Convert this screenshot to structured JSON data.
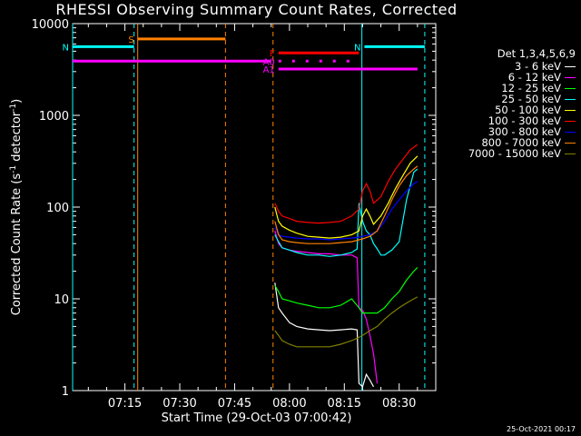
{
  "title": "RHESSI Observing Summary Count Rates, Corrected",
  "timestamp": "25-Oct-2021 00:17",
  "chart_data": {
    "type": "line",
    "xlabel": "Start Time (29-Oct-03 07:00:42)",
    "ylabel_main": "Corrected Count Rate (s",
    "ylabel_sup": "-1",
    "ylabel_tail": " detector",
    "ylabel_end": ")",
    "x_start_min": 0.7,
    "xlim": [
      0.7,
      100
    ],
    "ylim": [
      1,
      10000
    ],
    "yscale": "log",
    "xticks": [
      {
        "t": 15,
        "label": "07:15"
      },
      {
        "t": 30,
        "label": "07:30"
      },
      {
        "t": 45,
        "label": "07:45"
      },
      {
        "t": 60,
        "label": "08:00"
      },
      {
        "t": 75,
        "label": "08:15"
      },
      {
        "t": 90,
        "label": "08:30"
      }
    ],
    "yticks": [
      {
        "v": 1,
        "label": "1"
      },
      {
        "v": 10,
        "label": "10"
      },
      {
        "v": 100,
        "label": "100"
      },
      {
        "v": 1000,
        "label": "1000"
      },
      {
        "v": 10000,
        "label": "10000"
      }
    ],
    "legend_title": "Det 1,3,4,5,6,9",
    "series": [
      {
        "name": "3 - 6 keV",
        "color": "#000000",
        "t": [
          56,
          57,
          58,
          60,
          62,
          65,
          68,
          71,
          74,
          77,
          78.5,
          79,
          80,
          81,
          82,
          83,
          85,
          86,
          88,
          90,
          92,
          94,
          95
        ],
        "values": [
          15,
          8,
          7,
          5.5,
          5,
          4.7,
          4.6,
          4.5,
          4.6,
          4.7,
          4.6,
          1.2,
          1.1,
          1.5,
          1.3,
          1.1,
          null,
          null,
          null,
          null,
          null,
          null,
          null
        ]
      },
      {
        "name": "6 - 12 keV",
        "color": "#ff00ff",
        "t": [
          56,
          57,
          58,
          60,
          62,
          65,
          68,
          71,
          74,
          77,
          78.5,
          79,
          80,
          81,
          82,
          83,
          84,
          85,
          86,
          88,
          90,
          92,
          94,
          95
        ],
        "values": [
          55,
          40,
          36,
          34,
          33,
          32,
          31,
          31,
          30,
          30,
          28,
          8,
          7.5,
          6,
          4,
          2.5,
          1.2,
          null,
          null,
          null,
          null,
          null,
          null,
          null
        ]
      },
      {
        "name": "12 - 25 keV",
        "color": "#00ff00",
        "t": [
          56,
          57,
          58,
          60,
          62,
          65,
          68,
          71,
          74,
          77,
          79,
          80,
          82,
          84,
          86,
          88,
          90,
          92,
          94,
          95
        ],
        "values": [
          14,
          12,
          10,
          9.5,
          9,
          8.5,
          8,
          8,
          8.5,
          10,
          8,
          7,
          7,
          7,
          8,
          10,
          12,
          16,
          20,
          22
        ]
      },
      {
        "name": "25 - 50 keV",
        "color": "#00ffff",
        "t": [
          56,
          57,
          58,
          60,
          62,
          65,
          68,
          71,
          74,
          77,
          78.5,
          79,
          80,
          81,
          82,
          83,
          84,
          85,
          86,
          88,
          90,
          92,
          94,
          95
        ],
        "values": [
          50,
          42,
          36,
          34,
          32,
          30,
          30,
          29,
          30,
          32,
          35,
          110,
          70,
          55,
          50,
          40,
          35,
          30,
          30,
          34,
          42,
          120,
          240,
          260
        ]
      },
      {
        "name": "50 - 100 keV",
        "color": "#ffff00",
        "t": [
          56,
          57,
          58,
          60,
          62,
          65,
          68,
          71,
          74,
          77,
          79,
          80,
          81,
          82,
          83,
          85,
          87,
          89,
          91,
          93,
          95
        ],
        "values": [
          100,
          70,
          62,
          56,
          52,
          48,
          47,
          46,
          47,
          50,
          55,
          80,
          95,
          80,
          65,
          80,
          110,
          160,
          220,
          300,
          360
        ]
      },
      {
        "name": "100 - 300 keV",
        "color": "#ff0000",
        "t": [
          56,
          57,
          58,
          60,
          62,
          65,
          68,
          71,
          74,
          77,
          79,
          80,
          81,
          82,
          83,
          85,
          87,
          89,
          91,
          93,
          95
        ],
        "values": [
          110,
          90,
          80,
          75,
          70,
          68,
          67,
          68,
          70,
          80,
          95,
          150,
          180,
          150,
          110,
          130,
          190,
          260,
          330,
          420,
          480
        ]
      },
      {
        "name": "300 - 800 keV",
        "color": "#0000ff",
        "t": [
          56,
          57,
          58,
          60,
          62,
          65,
          68,
          71,
          74,
          77,
          79,
          80,
          82,
          84,
          86,
          88,
          90,
          92,
          94,
          95
        ],
        "values": [
          60,
          50,
          48,
          47,
          46,
          45,
          45,
          44,
          45,
          46,
          47,
          48,
          50,
          55,
          70,
          95,
          120,
          150,
          180,
          190
        ]
      },
      {
        "name": "800 - 7000 keV",
        "color": "#ff8000",
        "t": [
          56,
          57,
          58,
          60,
          62,
          65,
          68,
          71,
          74,
          77,
          79,
          80,
          82,
          84,
          86,
          88,
          90,
          92,
          94,
          95
        ],
        "values": [
          70,
          50,
          44,
          42,
          41,
          40,
          40,
          40,
          41,
          42,
          44,
          45,
          48,
          55,
          80,
          120,
          170,
          220,
          260,
          280
        ]
      },
      {
        "name": "7000 - 15000 keV",
        "color": "#808000",
        "t": [
          56,
          57,
          58,
          60,
          62,
          65,
          68,
          71,
          74,
          77,
          79,
          80,
          82,
          84,
          86,
          88,
          90,
          92,
          94,
          95
        ],
        "values": [
          4.5,
          4,
          3.5,
          3.2,
          3,
          3,
          3,
          3,
          3.2,
          3.5,
          3.8,
          4,
          4.5,
          5,
          6,
          7,
          8,
          9,
          10,
          10.5
        ]
      }
    ],
    "state_bars": [
      {
        "label": "S",
        "color": "#ff8000",
        "t0": 18.5,
        "t1": 42.5,
        "v": 6800,
        "style": "solid"
      },
      {
        "label": "N",
        "color": "#00ffff",
        "t0": 0.7,
        "t1": 17.5,
        "v": 5600,
        "style": "solid"
      },
      {
        "label": "N",
        "color": "#00ffff",
        "t0": 80.5,
        "t1": 97,
        "v": 5600,
        "style": "solid"
      },
      {
        "label": "F",
        "color": "#ff0000",
        "t0": 57,
        "t1": 79,
        "v": 4800,
        "style": "solid"
      },
      {
        "label": "A0",
        "color": "#ff00ff",
        "t0": 57,
        "t1": 79,
        "v": 3900,
        "style": "dotted"
      },
      {
        "label": "A1",
        "color": "#ff00ff",
        "t0": 57,
        "t1": 95,
        "v": 3200,
        "style": "solid"
      },
      {
        "label": "",
        "color": "#ff00ff",
        "t0": 0.7,
        "t1": 55,
        "v": 3900,
        "style": "solid"
      }
    ],
    "vlines": [
      {
        "t": 0.7,
        "color": "#00ffff",
        "style": "solid"
      },
      {
        "t": 17.5,
        "color": "#00ffff",
        "style": "dashed"
      },
      {
        "t": 18.5,
        "color": "#ff8000",
        "style": "solid"
      },
      {
        "t": 42.5,
        "color": "#ff8000",
        "style": "dashed"
      },
      {
        "t": 55.5,
        "color": "#ff8000",
        "style": "dashed"
      },
      {
        "t": 79.8,
        "color": "#00ffff",
        "style": "solid"
      },
      {
        "t": 97,
        "color": "#00ffff",
        "style": "dashed"
      }
    ]
  }
}
